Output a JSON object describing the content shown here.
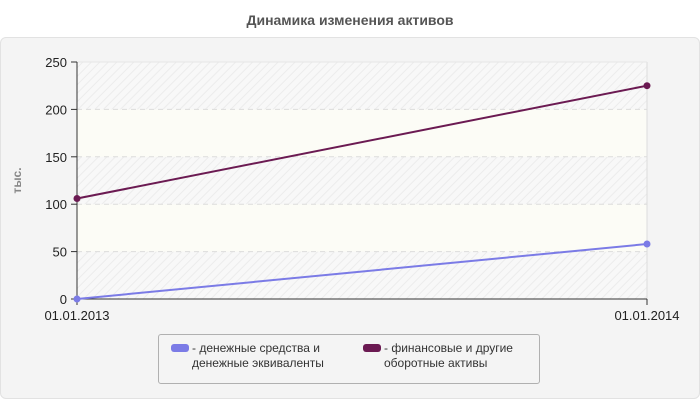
{
  "title": "Динамика изменения активов",
  "chart_data": {
    "type": "line",
    "title": "Динамика изменения активов",
    "xlabel": "",
    "ylabel": "тыс.",
    "categories": [
      "01.01.2013",
      "01.01.2014"
    ],
    "series": [
      {
        "name": "денежные средства и денежные эквиваленты",
        "color": "#7b7be6",
        "values": [
          0,
          58
        ]
      },
      {
        "name": "финансовые и другие оборотные активы",
        "color": "#6b1a52",
        "values": [
          106,
          225
        ]
      }
    ],
    "ylim": [
      0,
      250
    ],
    "yticks": [
      0,
      50,
      100,
      150,
      200,
      250
    ],
    "grid": true,
    "legend_position": "bottom"
  },
  "legend": {
    "items": [
      {
        "label": "- денежные средства и\nденежные эквиваленты",
        "color": "#7b7be6"
      },
      {
        "label": "- финансовые и другие\nоборотные активы",
        "color": "#6b1a52"
      }
    ]
  }
}
